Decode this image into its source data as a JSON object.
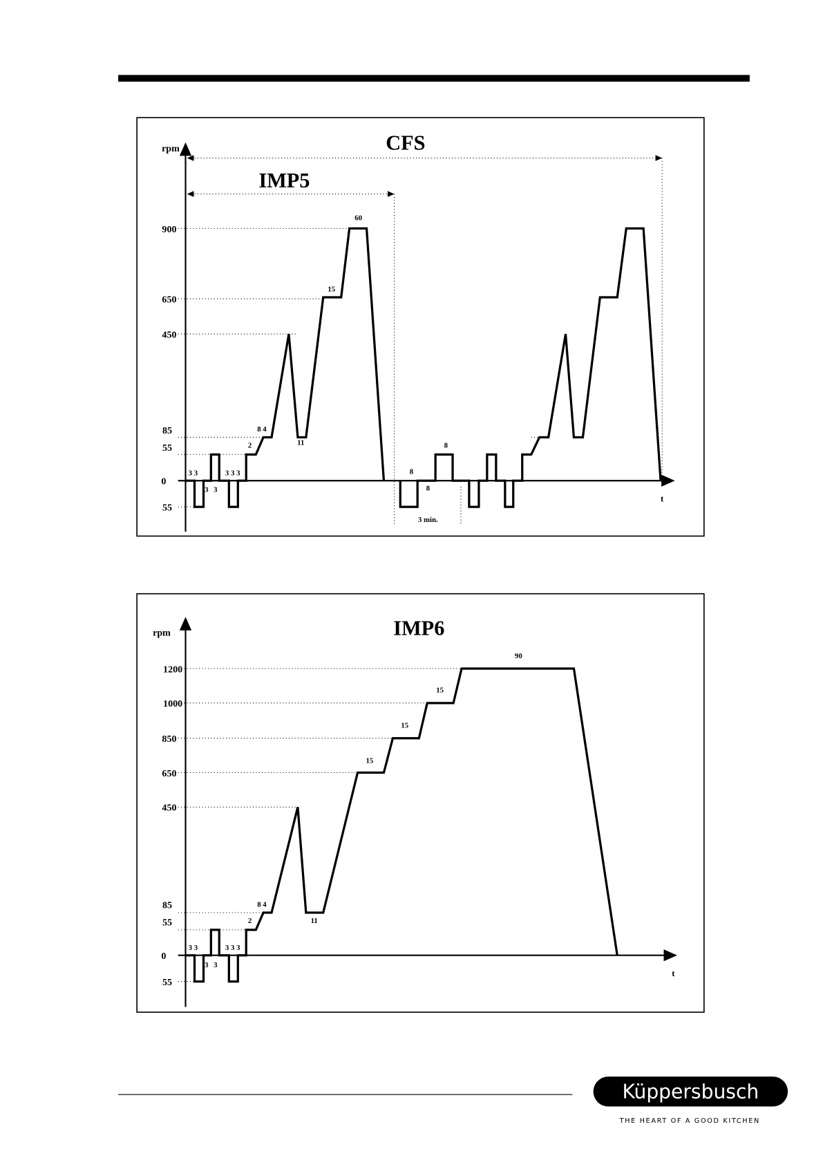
{
  "top": {
    "title": "CFS",
    "subtitle": "IMP5",
    "y_label": "rpm",
    "x_label": "t",
    "ticks": [
      "900",
      "650",
      "450",
      "85",
      "55",
      "0",
      "55"
    ],
    "labels": [
      "3 3",
      "3",
      "3",
      "3 3 3",
      "2",
      "8 4",
      "11",
      "15",
      "60",
      "8",
      "8",
      "8",
      "3 min."
    ]
  },
  "bottom": {
    "title": "IMP6",
    "y_label": "rpm",
    "x_label": "t",
    "ticks": [
      "1200",
      "1000",
      "850",
      "650",
      "450",
      "85",
      "55",
      "0",
      "55"
    ],
    "labels": [
      "3 3",
      "3",
      "3",
      "3 3 3",
      "2",
      "8 4",
      "11",
      "15",
      "15",
      "15",
      "90"
    ]
  },
  "footer": {
    "brand": "Küppersbusch",
    "tagline": "THE HEART OF A GOOD KITCHEN"
  }
}
